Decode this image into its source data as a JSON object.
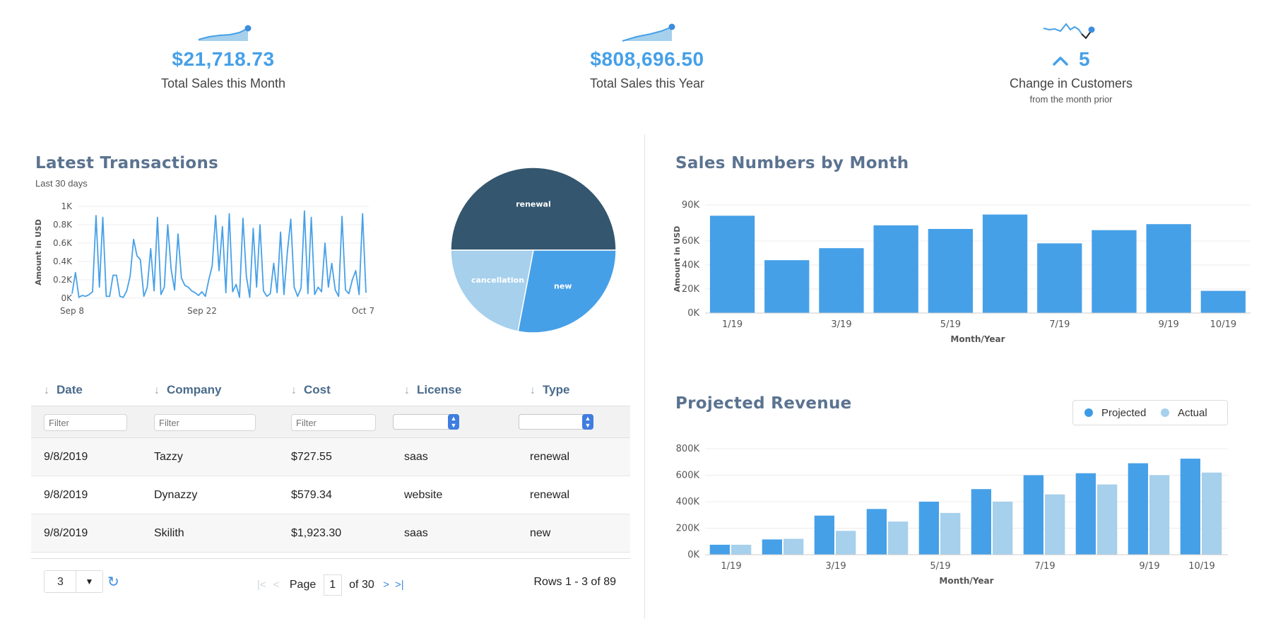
{
  "kpis": {
    "month_sales": {
      "value": "$21,718.73",
      "label": "Total Sales this Month"
    },
    "year_sales": {
      "value": "$808,696.50",
      "label": "Total Sales this Year"
    },
    "customers": {
      "value": "5",
      "label": "Change in Customers",
      "sublabel": "from the month prior",
      "arrow_icon": "chevron-up-icon"
    }
  },
  "transactions": {
    "title": "Latest Transactions",
    "subtitle": "Last 30 days"
  },
  "sales_by_month": {
    "title": "Sales Numbers by Month"
  },
  "projected_revenue": {
    "title": "Projected Revenue",
    "legend": {
      "projected": "Projected",
      "actual": "Actual"
    }
  },
  "table": {
    "columns": [
      "Date",
      "Company",
      "Cost",
      "License",
      "Type"
    ],
    "filter_placeholder": "Filter",
    "rows": [
      {
        "date": "9/8/2019",
        "company": "Tazzy",
        "cost": "$727.55",
        "license": "saas",
        "type": "renewal"
      },
      {
        "date": "9/8/2019",
        "company": "Dynazzy",
        "cost": "$579.34",
        "license": "website",
        "type": "renewal"
      },
      {
        "date": "9/8/2019",
        "company": "Skilith",
        "cost": "$1,923.30",
        "license": "saas",
        "type": "new"
      }
    ],
    "footer": {
      "page_size": "3",
      "page_label": "Page",
      "page_num": "1",
      "of_label": "of 30",
      "rows_info": "Rows 1 - 3 of 89"
    }
  },
  "colors": {
    "accent": "#46a0e8",
    "dark": "#34566f",
    "light": "#a6d0ec",
    "title": "#5b7390"
  },
  "chart_data": [
    {
      "type": "line",
      "title": "",
      "xlabel": "",
      "ylabel": "Amount in USD",
      "ylim": [
        0,
        1000
      ],
      "yticks": [
        "0K",
        "0.2K",
        "0.4K",
        "0.6K",
        "0.8K",
        "1K"
      ],
      "xticks": [
        "Sep 8",
        "Sep 22",
        "Oct 7"
      ],
      "series": [
        {
          "values": [
            50,
            280,
            10,
            30,
            20,
            40,
            70,
            900,
            120,
            880,
            20,
            20,
            250,
            250,
            20,
            10,
            80,
            240,
            640,
            460,
            420,
            20,
            120,
            540,
            80,
            880,
            40,
            120,
            800,
            310,
            90,
            700,
            220,
            140,
            120,
            80,
            60,
            30,
            70,
            20,
            200,
            350,
            900,
            300,
            780,
            60,
            920,
            70,
            150,
            10,
            870,
            240,
            10,
            760,
            120,
            800,
            80,
            20,
            50,
            380,
            60,
            720,
            40,
            500,
            860,
            120,
            20,
            110,
            950,
            50,
            880,
            40,
            120,
            70,
            600,
            120,
            380,
            90,
            20,
            890,
            90,
            50,
            200,
            300,
            40,
            920,
            60
          ]
        }
      ]
    },
    {
      "type": "pie",
      "title": "",
      "categories": [
        "renewal",
        "new",
        "cancellation"
      ],
      "values": [
        50,
        28,
        22
      ]
    },
    {
      "type": "bar",
      "title": "Sales Numbers by Month",
      "xlabel": "Month/Year",
      "ylabel": "Amount in USD",
      "ylim": [
        0,
        90000
      ],
      "yticks": [
        "0K",
        "20K",
        "40K",
        "60K",
        "90K"
      ],
      "xticks": [
        "1/19",
        "3/19",
        "5/19",
        "7/19",
        "9/19",
        "10/19"
      ],
      "categories": [
        "1/19",
        "2/19",
        "3/19",
        "4/19",
        "5/19",
        "6/19",
        "7/19",
        "8/19",
        "9/19",
        "10/19"
      ],
      "values": [
        81000,
        44000,
        54000,
        73000,
        70000,
        82000,
        58000,
        69000,
        74000,
        18500
      ]
    },
    {
      "type": "bar",
      "title": "Projected Revenue",
      "xlabel": "Month/Year",
      "ylim": [
        0,
        800000
      ],
      "yticks": [
        "0K",
        "200K",
        "400K",
        "600K",
        "800K"
      ],
      "xticks": [
        "1/19",
        "3/19",
        "5/19",
        "7/19",
        "9/19",
        "10/19"
      ],
      "categories": [
        "1/19",
        "2/19",
        "3/19",
        "4/19",
        "5/19",
        "6/19",
        "7/19",
        "8/19",
        "9/19",
        "10/19"
      ],
      "series": [
        {
          "name": "Projected",
          "values": [
            75000,
            115000,
            295000,
            345000,
            400000,
            495000,
            600000,
            615000,
            690000,
            725000
          ]
        },
        {
          "name": "Actual",
          "values": [
            75000,
            120000,
            180000,
            250000,
            315000,
            400000,
            455000,
            530000,
            600000,
            620000
          ]
        }
      ]
    }
  ]
}
